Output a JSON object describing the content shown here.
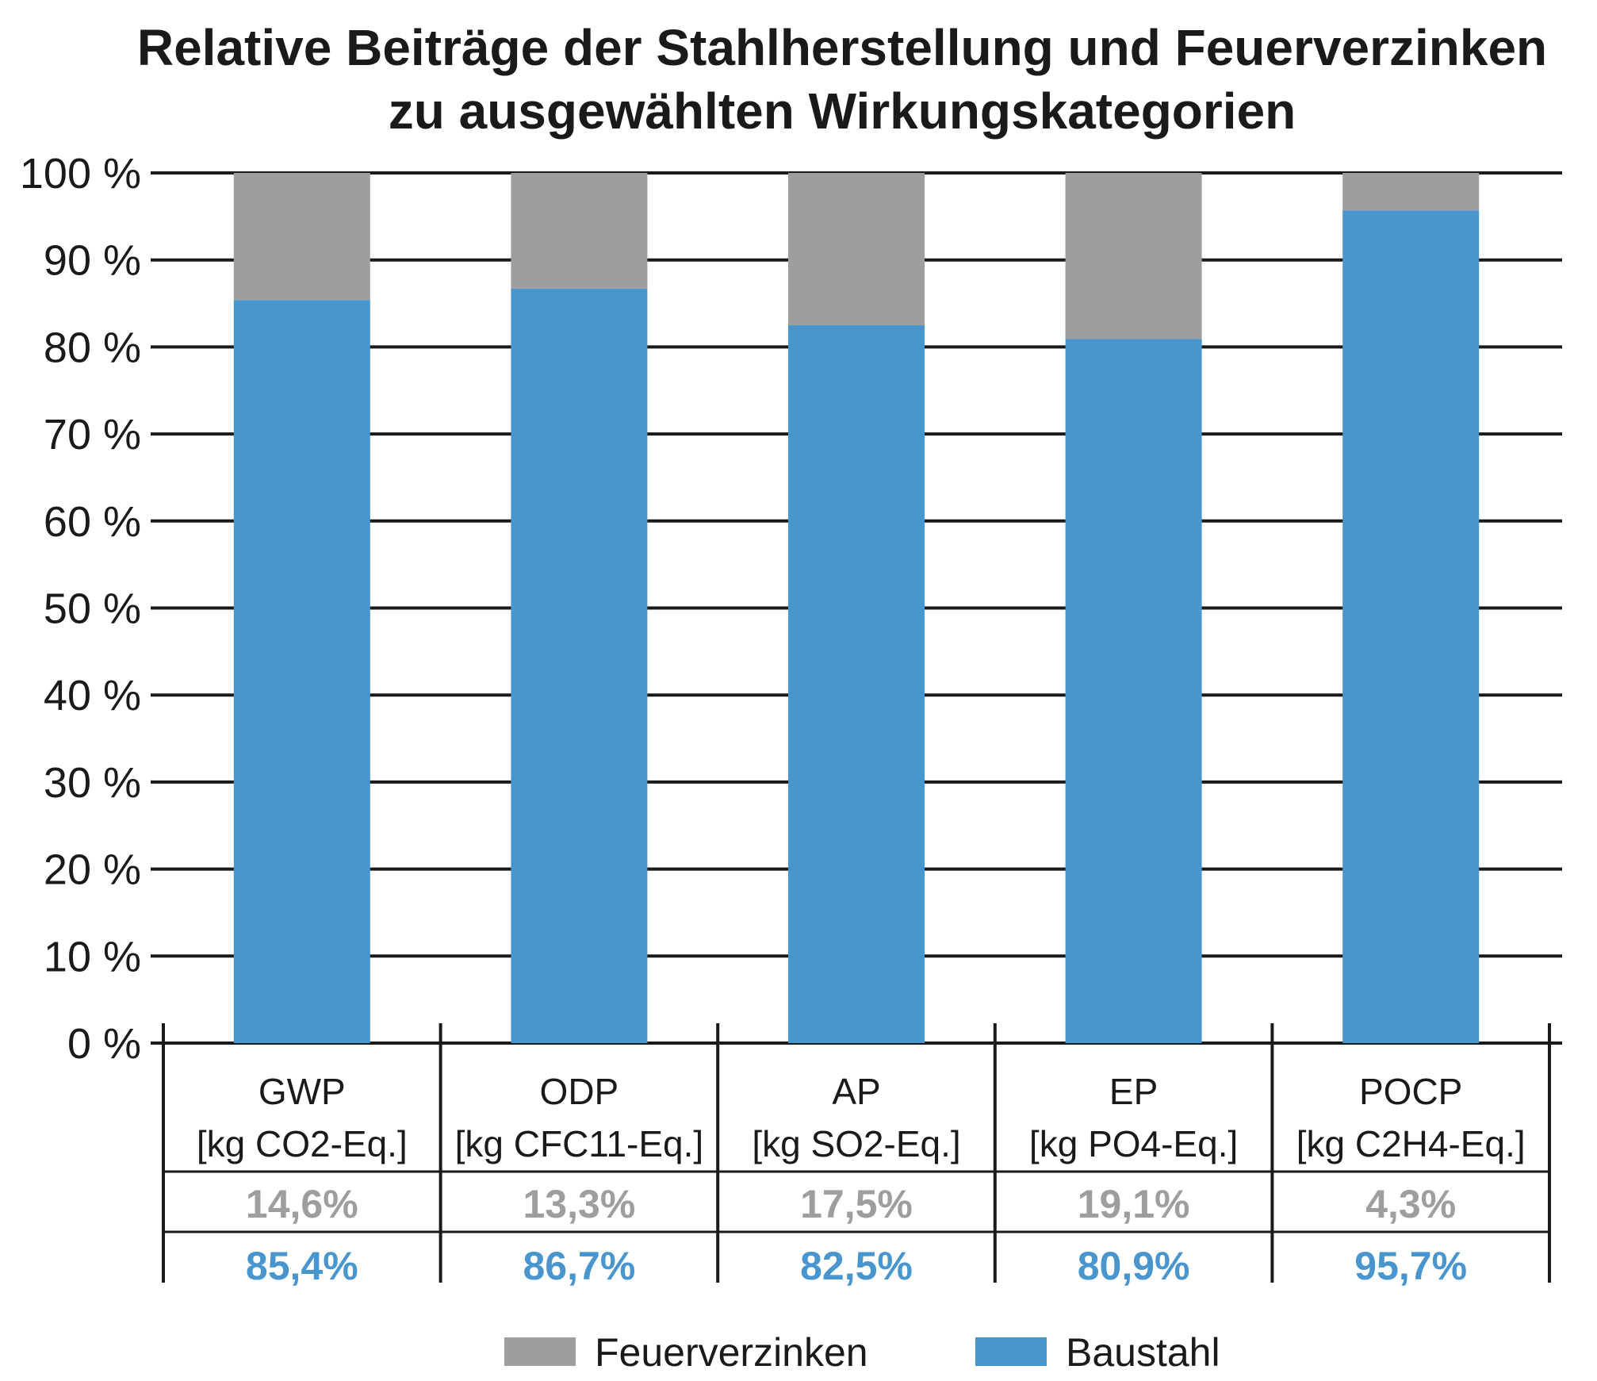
{
  "chart_data": {
    "type": "bar",
    "stacked": true,
    "title": [
      "Relative Beiträge der Stahlherstellung und Feuerverzinken",
      "zu ausgewählten Wirkungskategorien"
    ],
    "categories": [
      "GWP",
      "ODP",
      "AP",
      "EP",
      "POCP"
    ],
    "category_units": [
      "[kg CO2-Eq.]",
      "[kg CFC11-Eq.]",
      "[kg SO2-Eq.]",
      "[kg PO4-Eq.]",
      "[kg C2H4-Eq.]"
    ],
    "series": [
      {
        "name": "Baustahl",
        "color": "#4996cf",
        "values": [
          85.4,
          86.7,
          82.5,
          80.9,
          95.7
        ],
        "value_labels": [
          "85,4%",
          "86,7%",
          "82,5%",
          "80,9%",
          "95,7%"
        ]
      },
      {
        "name": "Feuerverzinken",
        "color": "#9d9e9f",
        "values": [
          14.6,
          13.3,
          17.5,
          19.1,
          4.3
        ],
        "value_labels": [
          "14,6%",
          "13,3%",
          "17,5%",
          "19,1%",
          "4,3%"
        ]
      }
    ],
    "ylim": [
      0,
      100
    ],
    "yticks": [
      0,
      10,
      20,
      30,
      40,
      50,
      60,
      70,
      80,
      90,
      100
    ],
    "ytick_labels": [
      "0 %",
      "10 %",
      "20 %",
      "30 %",
      "40 %",
      "50 %",
      "60 %",
      "70 %",
      "80 %",
      "90 %",
      "100 %"
    ],
    "grid": true,
    "legend": {
      "position": "bottom-center",
      "entries": [
        "Feuerverzinken",
        "Baustahl"
      ]
    }
  }
}
